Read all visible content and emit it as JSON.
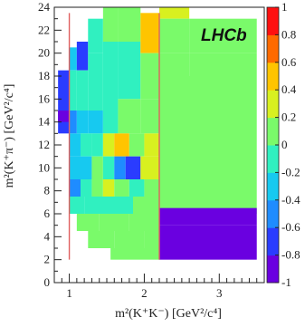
{
  "chart_data": {
    "type": "heatmap",
    "title": "",
    "badge": "LHCb",
    "xlabel": "m²(K⁺K⁻) [GeV²/c⁴]",
    "ylabel": "m²(K⁺π⁻) [GeV²/c⁴]",
    "xlim": [
      0.8,
      3.6
    ],
    "ylim": [
      0,
      24
    ],
    "xticks": [
      "1",
      "2",
      "3"
    ],
    "yticks": [
      "0",
      "2",
      "4",
      "6",
      "8",
      "10",
      "12",
      "14",
      "16",
      "18",
      "20",
      "22",
      "24"
    ],
    "colorbar": {
      "range": [
        -1,
        1
      ],
      "ticks": [
        "1",
        "0.8",
        "0.6",
        "0.4",
        "0.2",
        "0",
        "-0.2",
        "-0.4",
        "-0.6",
        "-0.8",
        "-1"
      ],
      "colors": [
        "#6a00e0",
        "#2a3cff",
        "#1f8cff",
        "#17c9f0",
        "#30f0c0",
        "#7afa6a",
        "#d8f020",
        "#ffc400",
        "#ff6a00",
        "#ff1010"
      ]
    },
    "reference_lines_x": [
      1.0,
      2.2
    ],
    "reference_lines_yrange": [
      2,
      23.5
    ],
    "cells": [
      {
        "x0": 0.85,
        "x1": 1.0,
        "y0": 13,
        "y1": 18.5,
        "v": -0.7
      },
      {
        "x0": 0.85,
        "x1": 1.0,
        "y0": 14,
        "y1": 15,
        "v": -0.95
      },
      {
        "x0": 1.0,
        "x1": 1.1,
        "y0": 18.5,
        "y1": 20.5,
        "v": -0.3
      },
      {
        "x0": 1.0,
        "x1": 1.1,
        "y0": 15,
        "y1": 18.5,
        "v": -0.1
      },
      {
        "x0": 1.0,
        "x1": 1.1,
        "y0": 13,
        "y1": 15,
        "v": -0.55
      },
      {
        "x0": 1.0,
        "x1": 1.15,
        "y0": 11,
        "y1": 13,
        "v": -0.25
      },
      {
        "x0": 1.0,
        "x1": 1.15,
        "y0": 9,
        "y1": 11,
        "v": -0.3
      },
      {
        "x0": 1.0,
        "x1": 1.15,
        "y0": 7.5,
        "y1": 9,
        "v": -0.6
      },
      {
        "x0": 1.15,
        "x1": 1.3,
        "y0": 7.5,
        "y1": 9,
        "v": -0.15
      },
      {
        "x0": 1.1,
        "x1": 1.25,
        "y0": 18.5,
        "y1": 21,
        "v": -0.7
      },
      {
        "x0": 1.1,
        "x1": 1.25,
        "y0": 15,
        "y1": 18.5,
        "v": -0.2
      },
      {
        "x0": 1.25,
        "x1": 1.45,
        "y0": 20,
        "y1": 23,
        "v": -0.1
      },
      {
        "x0": 1.25,
        "x1": 1.45,
        "y0": 15,
        "y1": 20,
        "v": -0.15
      },
      {
        "x0": 1.45,
        "x1": 1.65,
        "y0": 21,
        "y1": 24,
        "v": 0.05
      },
      {
        "x0": 1.45,
        "x1": 1.65,
        "y0": 15,
        "y1": 21,
        "v": -0.1
      },
      {
        "x0": 1.65,
        "x1": 1.95,
        "y0": 21,
        "y1": 24,
        "v": 0.15
      },
      {
        "x0": 1.65,
        "x1": 1.95,
        "y0": 16,
        "y1": 21,
        "v": -0.05
      },
      {
        "x0": 1.95,
        "x1": 2.2,
        "y0": 20,
        "y1": 23.5,
        "v": 0.55
      },
      {
        "x0": 1.95,
        "x1": 2.2,
        "y0": 16,
        "y1": 20,
        "v": 0.1
      },
      {
        "x0": 2.2,
        "x1": 2.6,
        "y0": 23,
        "y1": 24,
        "v": 0.3
      },
      {
        "x0": 2.2,
        "x1": 2.6,
        "y0": 20,
        "y1": 23,
        "v": 0.05
      },
      {
        "x0": 2.6,
        "x1": 3.5,
        "y0": 20,
        "y1": 23,
        "v": 0.1
      },
      {
        "x0": 2.2,
        "x1": 2.6,
        "y0": 18,
        "y1": 20,
        "v": 0.15
      },
      {
        "x0": 2.6,
        "x1": 3.5,
        "y0": 18,
        "y1": 20,
        "v": 0.1
      },
      {
        "x0": 2.2,
        "x1": 3.5,
        "y0": 6,
        "y1": 18,
        "v": 0.08
      },
      {
        "x0": 2.2,
        "x1": 2.6,
        "y0": 14,
        "y1": 18,
        "v": 0.12
      },
      {
        "x0": 2.2,
        "x1": 3.5,
        "y0": 5,
        "y1": 6.5,
        "v": -0.85
      },
      {
        "x0": 2.2,
        "x1": 3.5,
        "y0": 2,
        "y1": 5,
        "v": -0.97
      },
      {
        "x0": 1.25,
        "x1": 1.45,
        "y0": 13,
        "y1": 15,
        "v": -0.25
      },
      {
        "x0": 1.45,
        "x1": 1.65,
        "y0": 13,
        "y1": 15,
        "v": -0.05
      },
      {
        "x0": 1.65,
        "x1": 1.95,
        "y0": 13,
        "y1": 16,
        "v": 0.05
      },
      {
        "x0": 1.95,
        "x1": 2.2,
        "y0": 13,
        "y1": 16,
        "v": 0.12
      },
      {
        "x0": 1.1,
        "x1": 1.25,
        "y0": 13,
        "y1": 15,
        "v": -0.3
      },
      {
        "x0": 1.15,
        "x1": 1.3,
        "y0": 11,
        "y1": 13,
        "v": -0.05
      },
      {
        "x0": 1.3,
        "x1": 1.45,
        "y0": 11,
        "y1": 13,
        "v": -0.2
      },
      {
        "x0": 1.45,
        "x1": 1.6,
        "y0": 11,
        "y1": 13,
        "v": 0.35
      },
      {
        "x0": 1.6,
        "x1": 1.8,
        "y0": 11,
        "y1": 13,
        "v": 0.45
      },
      {
        "x0": 1.8,
        "x1": 2.0,
        "y0": 11,
        "y1": 13,
        "v": 0.1
      },
      {
        "x0": 2.0,
        "x1": 2.2,
        "y0": 11,
        "y1": 13,
        "v": 0.25
      },
      {
        "x0": 1.15,
        "x1": 1.3,
        "y0": 9,
        "y1": 11,
        "v": -0.3
      },
      {
        "x0": 1.3,
        "x1": 1.45,
        "y0": 9,
        "y1": 11,
        "v": 0.15
      },
      {
        "x0": 1.45,
        "x1": 1.6,
        "y0": 9,
        "y1": 11,
        "v": -0.1
      },
      {
        "x0": 1.6,
        "x1": 1.75,
        "y0": 9,
        "y1": 11,
        "v": -0.5
      },
      {
        "x0": 1.75,
        "x1": 1.95,
        "y0": 9,
        "y1": 11,
        "v": -0.75
      },
      {
        "x0": 1.95,
        "x1": 2.2,
        "y0": 9,
        "y1": 11,
        "v": 0.25
      },
      {
        "x0": 1.3,
        "x1": 1.45,
        "y0": 7.5,
        "y1": 9,
        "v": 0.1
      },
      {
        "x0": 1.45,
        "x1": 1.6,
        "y0": 7.5,
        "y1": 9,
        "v": 0.3
      },
      {
        "x0": 1.6,
        "x1": 1.8,
        "y0": 7.5,
        "y1": 9,
        "v": 0.0
      },
      {
        "x0": 1.8,
        "x1": 2.0,
        "y0": 7.5,
        "y1": 9,
        "v": -0.15
      },
      {
        "x0": 2.0,
        "x1": 2.2,
        "y0": 7.5,
        "y1": 9,
        "v": 0.05
      },
      {
        "x0": 1.0,
        "x1": 1.2,
        "y0": 6,
        "y1": 7.5,
        "v": -0.05
      },
      {
        "x0": 1.2,
        "x1": 1.5,
        "y0": 6,
        "y1": 7.5,
        "v": -0.1
      },
      {
        "x0": 1.5,
        "x1": 1.85,
        "y0": 6,
        "y1": 7.5,
        "v": -0.05
      },
      {
        "x0": 1.85,
        "x1": 2.2,
        "y0": 6,
        "y1": 7.5,
        "v": 0.0
      },
      {
        "x0": 1.1,
        "x1": 1.4,
        "y0": 4.5,
        "y1": 6,
        "v": 0.0
      },
      {
        "x0": 1.4,
        "x1": 1.8,
        "y0": 4.5,
        "y1": 6,
        "v": 0.05
      },
      {
        "x0": 1.8,
        "x1": 2.2,
        "y0": 4.5,
        "y1": 6,
        "v": 0.1
      },
      {
        "x0": 1.25,
        "x1": 1.6,
        "y0": 3,
        "y1": 4.5,
        "v": 0.05
      },
      {
        "x0": 1.6,
        "x1": 2.0,
        "y0": 3,
        "y1": 4.5,
        "v": 0.1
      },
      {
        "x0": 2.0,
        "x1": 2.2,
        "y0": 3,
        "y1": 4.5,
        "v": 0.05
      },
      {
        "x0": 1.55,
        "x1": 2.2,
        "y0": 2,
        "y1": 3,
        "v": 0.1
      }
    ]
  }
}
